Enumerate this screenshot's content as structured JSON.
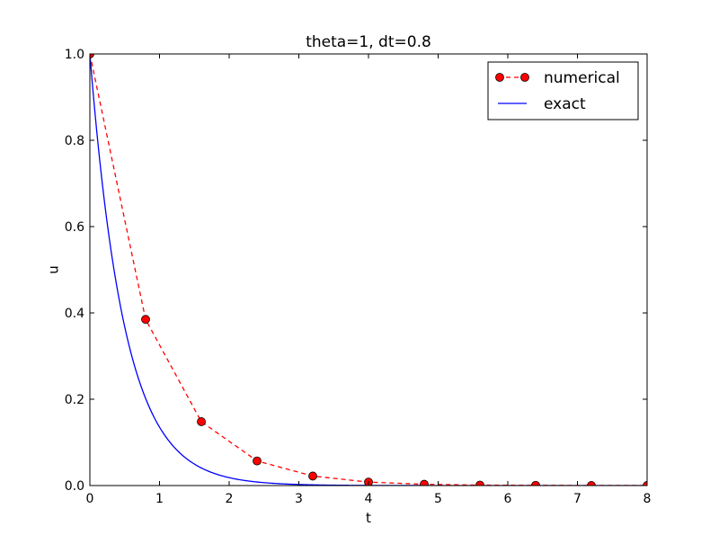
{
  "chart_data": {
    "type": "line",
    "title": "theta=1, dt=0.8",
    "xlabel": "t",
    "ylabel": "u",
    "xlim": [
      0,
      8
    ],
    "ylim": [
      0.0,
      1.0
    ],
    "x_ticks": [
      "0",
      "1",
      "2",
      "3",
      "4",
      "5",
      "6",
      "7",
      "8"
    ],
    "y_ticks": [
      "0.0",
      "0.2",
      "0.4",
      "0.6",
      "0.8",
      "1.0"
    ],
    "grid": false,
    "legend_position": "top-right",
    "series": [
      {
        "name": "numerical",
        "style": "dashed line with circle markers",
        "color": "#ff0000",
        "x": [
          0.0,
          0.8,
          1.6,
          2.4,
          3.2,
          4.0,
          4.8,
          5.6,
          6.4,
          7.2,
          8.0
        ],
        "y": [
          1.0,
          0.385,
          0.148,
          0.057,
          0.022,
          0.008,
          0.003,
          0.001,
          0.0005,
          0.0002,
          0.0001
        ]
      },
      {
        "name": "exact",
        "style": "solid line",
        "color": "#0000ff",
        "function": "u = exp(-2t)"
      }
    ]
  }
}
